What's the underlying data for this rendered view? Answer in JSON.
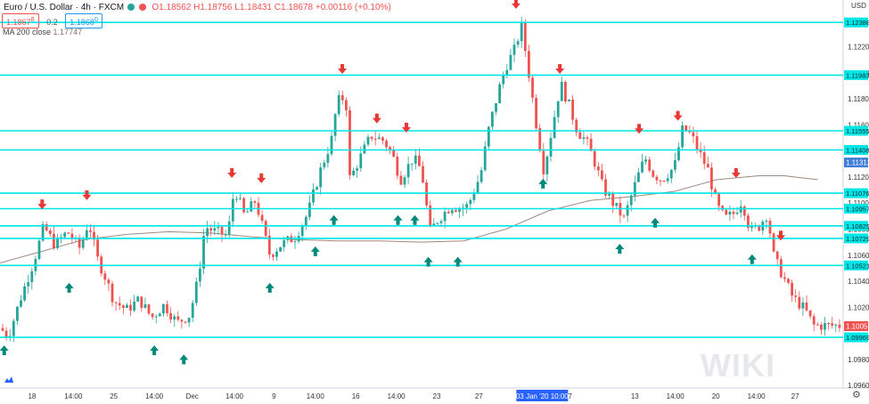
{
  "header": {
    "symbol": "Euro / U.S. Dollar",
    "timeframe": "4h",
    "exchange": "FXCM",
    "ohlc": "O1.18562 H1.18756 L1.18431 C1.18678 +0.00116 (+0.10%)",
    "sell_price": "1.1867",
    "sell_super": "8",
    "spread": "0.2",
    "buy_price": "1.1868",
    "buy_super": "0",
    "indicator_label": "MA 200 close",
    "indicator_value": "1.17747"
  },
  "axis": {
    "currency": "USD"
  },
  "watermark": "WIKI",
  "colors": {
    "up": "#26a69a",
    "down": "#ef5350",
    "level_line": "#00e5e5",
    "ma_line": "#a1887f",
    "arrow_down": "#e53935",
    "arrow_up": "#00897b",
    "crosshair_label": "#2962ff"
  },
  "chart_data": {
    "type": "candlestick",
    "ylim": [
      1.0958,
      1.1256
    ],
    "y_ticks": [
      "1.12200",
      "1.12000",
      "1.11800",
      "1.11600",
      "1.11200",
      "1.11000",
      "1.10800",
      "1.10600",
      "1.10400",
      "1.10200",
      "1.09800",
      "1.09600"
    ],
    "x_labels": [
      {
        "label": "18",
        "x": 0.038
      },
      {
        "label": "14:00",
        "x": 0.087
      },
      {
        "label": "25",
        "x": 0.135
      },
      {
        "label": "14:00",
        "x": 0.183
      },
      {
        "label": "Dec",
        "x": 0.228
      },
      {
        "label": "14:00",
        "x": 0.278
      },
      {
        "label": "9",
        "x": 0.325
      },
      {
        "label": "14:00",
        "x": 0.374
      },
      {
        "label": "16",
        "x": 0.422
      },
      {
        "label": "14:00",
        "x": 0.47
      },
      {
        "label": "23",
        "x": 0.518
      },
      {
        "label": "27",
        "x": 0.568
      },
      {
        "label": "7",
        "x": 0.676
      },
      {
        "label": "13",
        "x": 0.753
      },
      {
        "label": "14:00",
        "x": 0.801
      },
      {
        "label": "20",
        "x": 0.849
      },
      {
        "label": "14:00",
        "x": 0.897
      },
      {
        "label": "27",
        "x": 0.943
      }
    ],
    "crosshair_label": {
      "label": "03 Jan '20  10:00",
      "x": 0.643
    },
    "levels": [
      {
        "label": "1.12388",
        "price": 1.12388
      },
      {
        "label": "1.11983",
        "price": 1.11983
      },
      {
        "label": "1.11555",
        "price": 1.11555
      },
      {
        "label": "1.11408",
        "price": 1.11408
      },
      {
        "label": "1.11076",
        "price": 1.11076
      },
      {
        "label": "1.10957",
        "price": 1.10957
      },
      {
        "label": "1.10825",
        "price": 1.10825
      },
      {
        "label": "1.10729",
        "price": 1.10729
      },
      {
        "label": "1.10521",
        "price": 1.10521
      },
      {
        "label": "1.09969",
        "price": 1.09969
      }
    ],
    "price_labels": [
      {
        "label": "1.11312",
        "price": 1.11312
      },
      {
        "label": "1.10055",
        "price": 1.10055
      }
    ],
    "ma_points": [
      [
        0.0,
        1.1054
      ],
      [
        0.05,
        1.1063
      ],
      [
        0.1,
        1.1072
      ],
      [
        0.15,
        1.1076
      ],
      [
        0.2,
        1.1078
      ],
      [
        0.25,
        1.1077
      ],
      [
        0.3,
        1.1074
      ],
      [
        0.35,
        1.1072
      ],
      [
        0.4,
        1.1071
      ],
      [
        0.45,
        1.1071
      ],
      [
        0.5,
        1.107
      ],
      [
        0.55,
        1.1071
      ],
      [
        0.6,
        1.108
      ],
      [
        0.65,
        1.1094
      ],
      [
        0.7,
        1.1102
      ],
      [
        0.75,
        1.1105
      ],
      [
        0.8,
        1.1109
      ],
      [
        0.85,
        1.1118
      ],
      [
        0.9,
        1.1121
      ],
      [
        0.93,
        1.1121
      ],
      [
        0.97,
        1.1118
      ]
    ],
    "price_path": [
      [
        0.0,
        1.1004
      ],
      [
        0.01,
        1.0998
      ],
      [
        0.025,
        1.1028
      ],
      [
        0.04,
        1.1055
      ],
      [
        0.052,
        1.1082
      ],
      [
        0.065,
        1.1068
      ],
      [
        0.08,
        1.1078
      ],
      [
        0.095,
        1.1065
      ],
      [
        0.105,
        1.1086
      ],
      [
        0.115,
        1.1058
      ],
      [
        0.125,
        1.1043
      ],
      [
        0.135,
        1.1025
      ],
      [
        0.15,
        1.1018
      ],
      [
        0.165,
        1.1026
      ],
      [
        0.18,
        1.1012
      ],
      [
        0.195,
        1.1022
      ],
      [
        0.21,
        1.1008
      ],
      [
        0.225,
        1.1014
      ],
      [
        0.235,
        1.1042
      ],
      [
        0.243,
        1.1082
      ],
      [
        0.255,
        1.1078
      ],
      [
        0.27,
        1.1075
      ],
      [
        0.278,
        1.1112
      ],
      [
        0.29,
        1.109
      ],
      [
        0.303,
        1.1102
      ],
      [
        0.312,
        1.108
      ],
      [
        0.32,
        1.106
      ],
      [
        0.333,
        1.1068
      ],
      [
        0.35,
        1.1074
      ],
      [
        0.365,
        1.1092
      ],
      [
        0.38,
        1.1125
      ],
      [
        0.393,
        1.1148
      ],
      [
        0.4,
        1.1178
      ],
      [
        0.41,
        1.1182
      ],
      [
        0.415,
        1.1118
      ],
      [
        0.425,
        1.1132
      ],
      [
        0.44,
        1.1152
      ],
      [
        0.455,
        1.1148
      ],
      [
        0.465,
        1.1138
      ],
      [
        0.475,
        1.1118
      ],
      [
        0.49,
        1.1135
      ],
      [
        0.5,
        1.1125
      ],
      [
        0.51,
        1.1078
      ],
      [
        0.52,
        1.1088
      ],
      [
        0.535,
        1.1098
      ],
      [
        0.545,
        1.1096
      ],
      [
        0.555,
        1.1098
      ],
      [
        0.57,
        1.1122
      ],
      [
        0.58,
        1.1158
      ],
      [
        0.592,
        1.1188
      ],
      [
        0.6,
        1.1205
      ],
      [
        0.612,
        1.122
      ],
      [
        0.618,
        1.1238
      ],
      [
        0.626,
        1.1205
      ],
      [
        0.635,
        1.1165
      ],
      [
        0.645,
        1.1125
      ],
      [
        0.652,
        1.1148
      ],
      [
        0.665,
        1.1192
      ],
      [
        0.675,
        1.1175
      ],
      [
        0.685,
        1.1155
      ],
      [
        0.695,
        1.1148
      ],
      [
        0.705,
        1.1132
      ],
      [
        0.715,
        1.1112
      ],
      [
        0.725,
        1.1102
      ],
      [
        0.74,
        1.1088
      ],
      [
        0.755,
        1.1118
      ],
      [
        0.765,
        1.1135
      ],
      [
        0.775,
        1.1122
      ],
      [
        0.785,
        1.1118
      ],
      [
        0.8,
        1.1128
      ],
      [
        0.81,
        1.1158
      ],
      [
        0.82,
        1.1152
      ],
      [
        0.83,
        1.1138
      ],
      [
        0.84,
        1.1125
      ],
      [
        0.85,
        1.1098
      ],
      [
        0.86,
        1.1088
      ],
      [
        0.87,
        1.1092
      ],
      [
        0.88,
        1.1102
      ],
      [
        0.89,
        1.1078
      ],
      [
        0.9,
        1.1082
      ],
      [
        0.91,
        1.1092
      ],
      [
        0.918,
        1.1058
      ],
      [
        0.93,
        1.1042
      ],
      [
        0.94,
        1.1028
      ],
      [
        0.955,
        1.1018
      ],
      [
        0.965,
        1.1006
      ]
    ],
    "down_arrows": [
      {
        "x": 0.05,
        "price": 1.1098
      },
      {
        "x": 0.103,
        "price": 1.1105
      },
      {
        "x": 0.275,
        "price": 1.1122
      },
      {
        "x": 0.31,
        "price": 1.1118
      },
      {
        "x": 0.406,
        "price": 1.1202
      },
      {
        "x": 0.447,
        "price": 1.1164
      },
      {
        "x": 0.482,
        "price": 1.1157
      },
      {
        "x": 0.612,
        "price": 1.1252
      },
      {
        "x": 0.664,
        "price": 1.1202
      },
      {
        "x": 0.758,
        "price": 1.1156
      },
      {
        "x": 0.804,
        "price": 1.1166
      },
      {
        "x": 0.873,
        "price": 1.1122
      },
      {
        "x": 0.926,
        "price": 1.1074
      }
    ],
    "up_arrows": [
      {
        "x": 0.005,
        "price": 1.0988
      },
      {
        "x": 0.082,
        "price": 1.1036
      },
      {
        "x": 0.183,
        "price": 1.0988
      },
      {
        "x": 0.218,
        "price": 1.0981
      },
      {
        "x": 0.32,
        "price": 1.1036
      },
      {
        "x": 0.374,
        "price": 1.1064
      },
      {
        "x": 0.396,
        "price": 1.1088
      },
      {
        "x": 0.472,
        "price": 1.1088
      },
      {
        "x": 0.492,
        "price": 1.1088
      },
      {
        "x": 0.508,
        "price": 1.1056
      },
      {
        "x": 0.543,
        "price": 1.1056
      },
      {
        "x": 0.644,
        "price": 1.1116
      },
      {
        "x": 0.735,
        "price": 1.1066
      },
      {
        "x": 0.777,
        "price": 1.1086
      },
      {
        "x": 0.892,
        "price": 1.1058
      }
    ]
  }
}
